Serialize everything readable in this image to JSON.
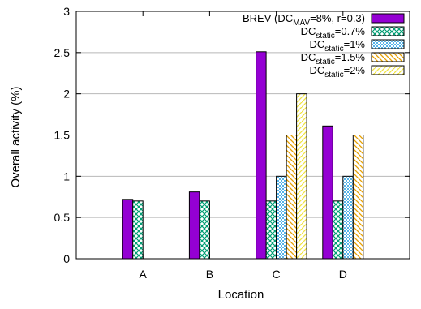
{
  "chart_data": {
    "type": "bar",
    "xlabel": "Location",
    "ylabel": "Overall activity (%)",
    "categories": [
      "A",
      "B",
      "C",
      "D"
    ],
    "ylim": [
      0,
      3
    ],
    "yticks": [
      0,
      0.5,
      1,
      1.5,
      2,
      2.5,
      3
    ],
    "ytick_labels": [
      "0",
      "0.5",
      "1",
      "1.5",
      "2",
      "2.5",
      "3"
    ],
    "grid": true,
    "legend_position": "top-right",
    "series": [
      {
        "name": "BREV (DC_MAV=8%, r=0.3)",
        "legend": {
          "base": "BREV (DC",
          "sub": "MAV",
          "rest": "=8%, r=0.3)"
        },
        "color": "#9400d3",
        "pattern": "solid",
        "values": [
          0.72,
          0.81,
          2.51,
          1.61
        ]
      },
      {
        "name": "DC_static=0.7%",
        "legend": {
          "base": "DC",
          "sub": "static",
          "rest": "=0.7%"
        },
        "color": "#009e73",
        "pattern": "crosshatch",
        "values": [
          0.7,
          0.7,
          0.7,
          0.7
        ]
      },
      {
        "name": "DC_static=1%",
        "legend": {
          "base": "DC",
          "sub": "static",
          "rest": "=1%"
        },
        "color": "#56b4e9",
        "pattern": "dots",
        "values": [
          null,
          null,
          1.0,
          1.0
        ]
      },
      {
        "name": "DC_static=1.5%",
        "legend": {
          "base": "DC",
          "sub": "static",
          "rest": "=1.5%"
        },
        "color": "#e69f00",
        "pattern": "diagonal-down",
        "values": [
          null,
          null,
          1.5,
          1.5
        ]
      },
      {
        "name": "DC_static=2%",
        "legend": {
          "base": "DC",
          "sub": "static",
          "rest": "=2%"
        },
        "color": "#f0e442",
        "pattern": "diagonal-up",
        "values": [
          null,
          null,
          2.0,
          null
        ]
      }
    ]
  }
}
